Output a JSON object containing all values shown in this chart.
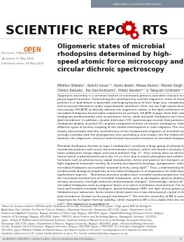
{
  "bg_color": "#ffffff",
  "header_bar_color": "#7a8a99",
  "header_url": "www.nature.com/scientificreports",
  "open_label": "OPEN",
  "open_color": "#e07020",
  "article_title": "Oligomeric states of microbial\nrhodopsins determined by high-\nspeed atomic force microscopy and\ncircular dichroic spectroscopy",
  "authors": "Mikihiro Shibata¹², Keiichi Inoue³⁴⁵, Kento Ikeda⁶, Masao Konno⁶, Manish Singh⁷,\nChihiro Kataoka⁷, Rei Abe-Yoshizumi³, Hideki Kandori³⁴⁸ & Takayuki Uchihashi¹²⁹",
  "received": "Received: 1 March 2018",
  "accepted": "Accepted: 11 May 2018",
  "published": "Published online: 29 May 2018",
  "abstract_text": "Oligomeric assembly is a common feature of membrane proteins and often relevant to their physiological functions. Determining the stoichiometry and the oligomeric state of membrane proteins in a lipid bilayer is generally challenging because of their large size, complexity, and structural alterations under experimental conditions. Here, we use high-speed atomic force microscopy (HS-AFM) to directly observe the oligomeric states in the lipid membrane of various microbial rhodopsins found within eubacteria to archaea. HS-AFM images show that eubacterial rhodopsins predominantly exist as pentamer forms, while archaeal rhodopsins are trimers in the lipid membrane. In addition, circular dichroism (CD) spectroscopy reveals that pentameric rhodopsins display inverted CD couplets compared to those of trimeric rhodopsins, indicating different types of exciton coupling of the retinal chromophore in each oligomer. The results clearly demonstrate that the stoichiometry of the fundamental oligomer of microbial rhodopsins strongly correlate with the phylogenetic tree, providing a new insight into the relationship between the oligomeric structure and function structural evolution of microbial rhodopsins.",
  "body_text": "Microbial rhodopsins (known as type 1 rhodopsins) constitute a large group of photoactive membrane proteins with seven transmembrane α-helices, which are found in archaea, bacteria, and lower eukaryotes (fungi, algae, and some protists) (Fig. 1)¹. They mainly have an all-trans retinal which is photoisomerized to the 13-cis form due to photo absorption and exhibit diverse functions such as photosensory signal transduction, active and passive ion transport, and light-regulated enzymatic activity. A recently developed technology, optogenetics, utilizes microbial rhodopsins as essential neuronal activity using light²³. Thus, understanding the fundamental biological properties of microbial rhodopsins is of importance for both basic and applications aspects.\n   Numerous previous studies have revealed various properties relevant to the functional mechanisms of microbial rhodopsins, such as absorption spectra, photocycles, tertiary structures, and light-induced conformational changes⁴. Interestingly, almost all microbial rhodopsins exist as oligomer forms in a native membrane environment. For example, the most well studied microbial rhodopsin, bacteriorhodopsin (BR), the light-driven proton pump of Halobacterium salinarum, forms trimers which pack into a two-dimensional crystal in the native lipid membrane (known as the purple membrane)⁵. The trimeric assembly of BR is considered to be important for its higher thermal stability, while monomeric BR is less stable than the native one⁶⁷. The oligomeric assemblies of",
  "footnote_text": "¹Nano Life Science Institute (WPI-NanoLSI), Kanazawa University, Kanazawa, 920-1192, Japan. ²High-speed AFM for Biological Application Unit, Institute for Frontier Science Initiative, Kanazawa University, Kanazawa, 920-1192, Japan. ³Department of Life Science and Applied Chemistry, Nagoya Institute of Technology, Nagoya, 466-8555, Japan. ⁴OptoBioTechnology Research Center, Nagoya Institute of Technology, Nagoya, 466-8555, Japan. ⁵PRESTO, Japan Science and Technology Agency, Kawaguchi, Saitama, 332-0012, Japan. ⁶School of Mathematical and Physical Sciences, Graduate School of Natural Science & Technology, Kanazawa University, Kanazawa, 920-1192, Japan. ⁷Department of Physics, Nagoya University, Nagoya, 464-8602, Japan. ⁸Structural Biology Research Center, Graduate School of Science, Nagoya University, Nagoya, 464-8602, Japan. ⁹CREST/JST, 4-1-8 Honcho, Kawaguchi, Saitama, 332-0012, Japan. Mikihiro Shibata and Keiichi Inoue contributed equally to this work. Correspondence and requests for materials should be addressed to H.K. (email: kandori@nitech.ac.jp) or T.U. (email: uchihash@d.phys.nagoya-u.ac.jp)",
  "bottom_bar_text": "SCIENTIFIC REPORTS | (2018) 8:8262 | DOI:10.1038/s41598-018-26606-y",
  "bottom_page_num": "1",
  "gear_color": "#cc0000"
}
